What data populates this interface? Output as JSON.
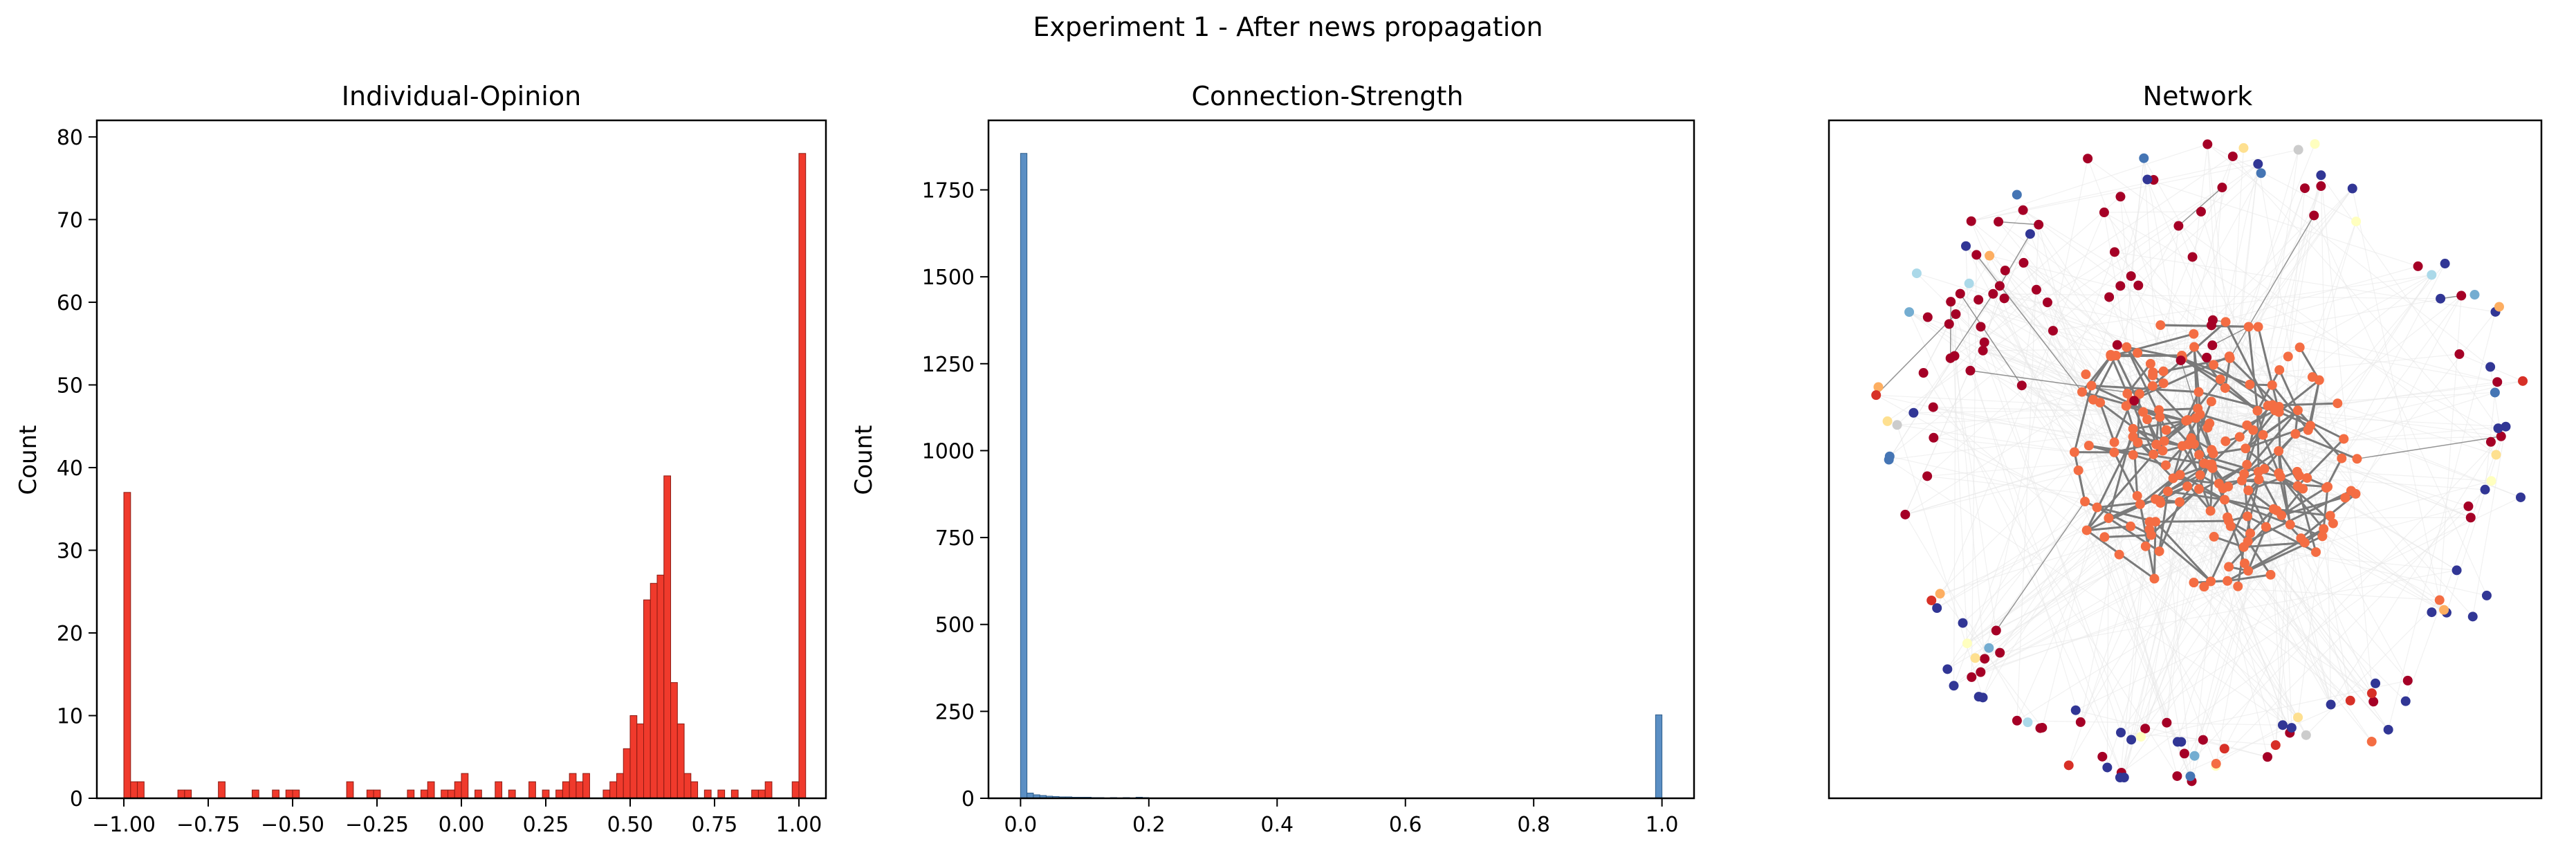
{
  "figure": {
    "suptitle": "Experiment 1 - After news propagation"
  },
  "colors": {
    "opinion_bar": "#f03a2c",
    "opinion_edge": "#8b1a12",
    "strength_bar": "#5b8fc4",
    "strength_edge": "#2f5d8a",
    "network_edge_bg": "#e8e8e8",
    "network_edge_fg": "#7a7a7a",
    "cluster_orange": "#f46d43",
    "cluster_red": "#a50026",
    "cluster_navy": "#313695",
    "sparse_colors": [
      "#fee090",
      "#fdae61",
      "#abd9e9",
      "#74add1",
      "#4575b4",
      "#ffffbf",
      "#d73027",
      "#f46d43",
      "#cccccc"
    ]
  },
  "chart_data": [
    {
      "type": "bar",
      "title": "Individual-Opinion",
      "xlabel": "",
      "ylabel": "Count",
      "xlim": [
        -1.08,
        1.08
      ],
      "ylim": [
        0,
        82
      ],
      "xticks": [
        -1.0,
        -0.75,
        -0.5,
        -0.25,
        0.0,
        0.25,
        0.5,
        0.75,
        1.0
      ],
      "xtick_labels": [
        "−1.00",
        "−0.75",
        "−0.50",
        "−0.25",
        "0.00",
        "0.25",
        "0.50",
        "0.75",
        "1.00"
      ],
      "yticks": [
        0,
        10,
        20,
        30,
        40,
        50,
        60,
        70,
        80
      ],
      "ytick_labels": [
        "0",
        "10",
        "20",
        "30",
        "40",
        "50",
        "60",
        "70",
        "80"
      ],
      "bin_width": 0.02,
      "bins": [
        {
          "x": -1.0,
          "count": 37
        },
        {
          "x": -0.98,
          "count": 2
        },
        {
          "x": -0.96,
          "count": 2
        },
        {
          "x": -0.84,
          "count": 1
        },
        {
          "x": -0.82,
          "count": 1
        },
        {
          "x": -0.72,
          "count": 2
        },
        {
          "x": -0.62,
          "count": 1
        },
        {
          "x": -0.56,
          "count": 1
        },
        {
          "x": -0.52,
          "count": 1
        },
        {
          "x": -0.5,
          "count": 1
        },
        {
          "x": -0.34,
          "count": 2
        },
        {
          "x": -0.28,
          "count": 1
        },
        {
          "x": -0.26,
          "count": 1
        },
        {
          "x": -0.16,
          "count": 1
        },
        {
          "x": -0.12,
          "count": 1
        },
        {
          "x": -0.1,
          "count": 2
        },
        {
          "x": -0.06,
          "count": 1
        },
        {
          "x": -0.04,
          "count": 1
        },
        {
          "x": -0.02,
          "count": 2
        },
        {
          "x": 0.0,
          "count": 3
        },
        {
          "x": 0.04,
          "count": 1
        },
        {
          "x": 0.1,
          "count": 2
        },
        {
          "x": 0.14,
          "count": 1
        },
        {
          "x": 0.2,
          "count": 2
        },
        {
          "x": 0.24,
          "count": 1
        },
        {
          "x": 0.28,
          "count": 1
        },
        {
          "x": 0.3,
          "count": 2
        },
        {
          "x": 0.32,
          "count": 3
        },
        {
          "x": 0.34,
          "count": 2
        },
        {
          "x": 0.36,
          "count": 3
        },
        {
          "x": 0.42,
          "count": 1
        },
        {
          "x": 0.44,
          "count": 2
        },
        {
          "x": 0.46,
          "count": 3
        },
        {
          "x": 0.48,
          "count": 6
        },
        {
          "x": 0.5,
          "count": 10
        },
        {
          "x": 0.52,
          "count": 9
        },
        {
          "x": 0.54,
          "count": 24
        },
        {
          "x": 0.56,
          "count": 26
        },
        {
          "x": 0.58,
          "count": 27
        },
        {
          "x": 0.6,
          "count": 39
        },
        {
          "x": 0.62,
          "count": 14
        },
        {
          "x": 0.64,
          "count": 9
        },
        {
          "x": 0.66,
          "count": 3
        },
        {
          "x": 0.68,
          "count": 2
        },
        {
          "x": 0.72,
          "count": 1
        },
        {
          "x": 0.76,
          "count": 1
        },
        {
          "x": 0.8,
          "count": 1
        },
        {
          "x": 0.86,
          "count": 1
        },
        {
          "x": 0.88,
          "count": 1
        },
        {
          "x": 0.9,
          "count": 2
        },
        {
          "x": 0.98,
          "count": 2
        },
        {
          "x": 1.0,
          "count": 78
        }
      ]
    },
    {
      "type": "bar",
      "title": "Connection-Strength",
      "xlabel": "",
      "ylabel": "Count",
      "xlim": [
        -0.05,
        1.05
      ],
      "ylim": [
        0,
        1950
      ],
      "xticks": [
        0.0,
        0.2,
        0.4,
        0.6,
        0.8,
        1.0
      ],
      "xtick_labels": [
        "0.0",
        "0.2",
        "0.4",
        "0.6",
        "0.8",
        "1.0"
      ],
      "yticks": [
        0,
        250,
        500,
        750,
        1000,
        1250,
        1500,
        1750
      ],
      "ytick_labels": [
        "0",
        "250",
        "500",
        "750",
        "1000",
        "1250",
        "1500",
        "1750"
      ],
      "bin_width": 0.01,
      "bins": [
        {
          "x": 0.0,
          "count": 1855
        },
        {
          "x": 0.01,
          "count": 15
        },
        {
          "x": 0.02,
          "count": 10
        },
        {
          "x": 0.03,
          "count": 8
        },
        {
          "x": 0.04,
          "count": 6
        },
        {
          "x": 0.05,
          "count": 5
        },
        {
          "x": 0.06,
          "count": 4
        },
        {
          "x": 0.07,
          "count": 4
        },
        {
          "x": 0.08,
          "count": 3
        },
        {
          "x": 0.09,
          "count": 3
        },
        {
          "x": 0.1,
          "count": 3
        },
        {
          "x": 0.11,
          "count": 2
        },
        {
          "x": 0.12,
          "count": 2
        },
        {
          "x": 0.14,
          "count": 2
        },
        {
          "x": 0.16,
          "count": 2
        },
        {
          "x": 0.18,
          "count": 3
        },
        {
          "x": 0.19,
          "count": 2
        },
        {
          "x": 0.22,
          "count": 1
        },
        {
          "x": 0.25,
          "count": 1
        },
        {
          "x": 0.28,
          "count": 1
        },
        {
          "x": 0.99,
          "count": 240
        }
      ]
    },
    {
      "type": "network",
      "title": "Network",
      "node_groups": [
        {
          "color_key": "cluster_orange",
          "count": 180,
          "layout": "central-cluster"
        },
        {
          "color_key": "cluster_red",
          "count": 85,
          "layout": "upper-left-and-ring"
        },
        {
          "color_key": "cluster_navy",
          "count": 40,
          "layout": "outer-ring"
        },
        {
          "color_key": "sparse",
          "count": 45,
          "layout": "outer-ring"
        }
      ]
    }
  ]
}
